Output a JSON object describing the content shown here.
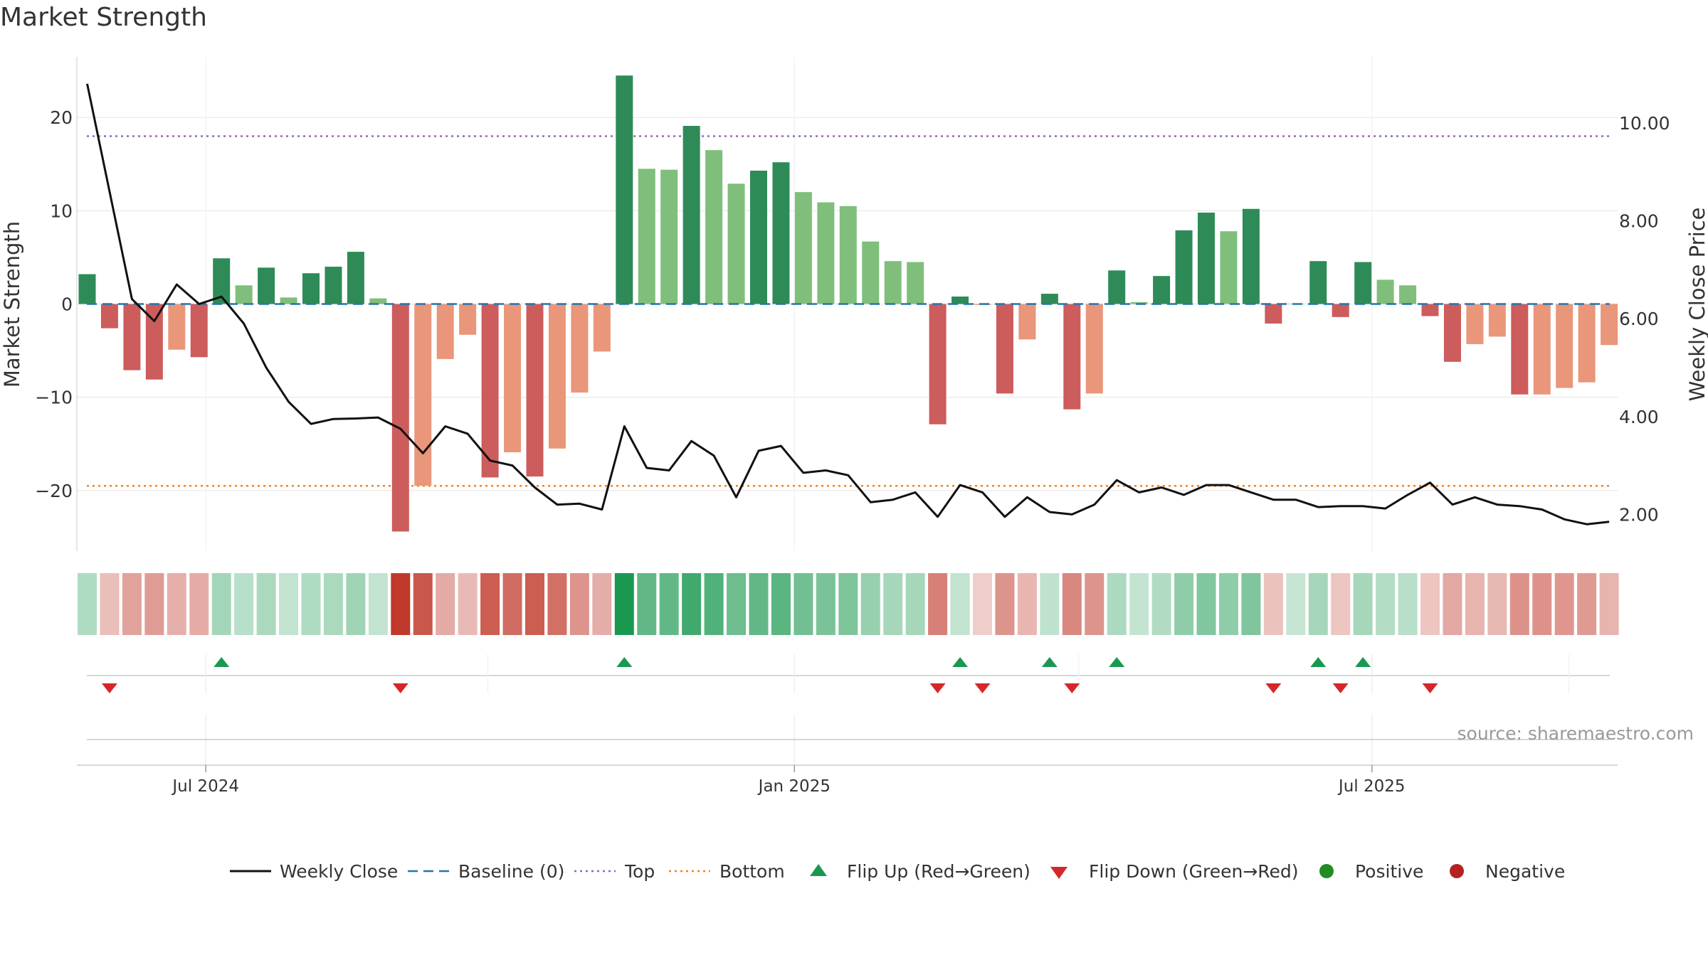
{
  "chart_data": {
    "type": "bar",
    "title": "Market Strength",
    "ylabel_left": "Market Strength",
    "ylabel_right": "Weekly Close Price",
    "source": "source: sharemaestro.com",
    "left_axis": {
      "ticks": [
        20,
        10,
        0,
        -10,
        -20
      ],
      "tick_labels": [
        "20",
        "10",
        "0",
        "−10",
        "−20"
      ],
      "ylim": [
        -26.5,
        26.5
      ]
    },
    "right_axis": {
      "ticks": [
        10,
        8,
        6,
        4,
        2
      ],
      "tick_labels": [
        "10.00",
        "8.00",
        "6.00",
        "4.00",
        "2.00"
      ],
      "ylim": [
        1.25,
        11.35
      ]
    },
    "x_tick_labels": [
      "Jul 2024",
      "Jan 2025",
      "Jul 2025"
    ],
    "x_tick_weeks": [
      5.3,
      31.6,
      57.4
    ],
    "top_level": 18,
    "bottom_level": -19.5,
    "weeks": 69,
    "strength": [
      3.2,
      -2.6,
      -7.1,
      -8.1,
      -4.9,
      -5.7,
      4.9,
      2.0,
      3.9,
      0.7,
      3.3,
      4.0,
      5.6,
      0.6,
      -24.4,
      -19.5,
      -5.9,
      -3.3,
      -18.6,
      -15.9,
      -18.5,
      -15.5,
      -9.5,
      -5.1,
      24.5,
      14.5,
      14.4,
      19.1,
      16.5,
      12.9,
      14.3,
      15.2,
      12.0,
      10.9,
      10.5,
      6.7,
      4.6,
      4.5,
      -12.9,
      0.8,
      -0.1,
      -9.6,
      -3.8,
      1.1,
      -11.3,
      -9.6,
      3.6,
      0.2,
      3.0,
      7.9,
      9.8,
      7.8,
      10.2,
      -2.1,
      0.0,
      4.6,
      -1.4,
      4.5,
      2.6,
      2.0,
      -1.3,
      -6.2,
      -4.3,
      -3.5,
      -9.7,
      -9.7,
      -9.0,
      -8.4,
      -4.4
    ],
    "bar_shade": [
      "dark",
      "dark",
      "dark",
      "dark",
      "light",
      "dark",
      "dark",
      "light",
      "dark",
      "light",
      "dark",
      "dark",
      "dark",
      "light",
      "dark",
      "light",
      "light",
      "light",
      "dark",
      "light",
      "dark",
      "light",
      "light",
      "light",
      "dark",
      "light",
      "light",
      "dark",
      "light",
      "light",
      "dark",
      "dark",
      "light",
      "light",
      "light",
      "light",
      "light",
      "light",
      "dark",
      "dark",
      "light",
      "dark",
      "light",
      "dark",
      "dark",
      "light",
      "dark",
      "light",
      "dark",
      "dark",
      "dark",
      "light",
      "dark",
      "dark",
      "light",
      "dark",
      "dark",
      "dark",
      "light",
      "light",
      "dark",
      "dark",
      "light",
      "light",
      "dark",
      "light",
      "light",
      "light",
      "light"
    ],
    "weekly_close": [
      10.8,
      8.6,
      6.4,
      5.95,
      6.7,
      6.3,
      6.45,
      5.9,
      5.0,
      4.3,
      3.85,
      3.95,
      3.96,
      3.98,
      3.75,
      3.25,
      3.8,
      3.65,
      3.1,
      3.0,
      2.55,
      2.2,
      2.22,
      2.1,
      3.8,
      2.95,
      2.9,
      3.5,
      3.2,
      2.35,
      3.3,
      3.4,
      2.85,
      2.9,
      2.8,
      2.25,
      2.3,
      2.45,
      1.95,
      2.6,
      2.45,
      1.95,
      2.35,
      2.05,
      2.0,
      2.2,
      2.7,
      2.45,
      2.55,
      2.4,
      2.6,
      2.6,
      2.45,
      2.3,
      2.3,
      2.15,
      2.17,
      2.17,
      2.12,
      2.4,
      2.65,
      2.2,
      2.35,
      2.2,
      2.17,
      2.1,
      1.9,
      1.8,
      1.85
    ],
    "flip_up_weeks": [
      6,
      24,
      39,
      43,
      46,
      55,
      57
    ],
    "flip_down_weeks": [
      1,
      14,
      38,
      40,
      44,
      53,
      56,
      60
    ],
    "legend": [
      "Weekly Close",
      "Baseline (0)",
      "Top",
      "Bottom",
      "Flip Up (Red→Green)",
      "Flip Down (Green→Red)",
      "Positive",
      "Negative"
    ],
    "legend_position": "bottom",
    "colors": {
      "pos_dark": "#2e8b57",
      "pos_light": "#7fbf7b",
      "neg_dark": "#cd5c5c",
      "neg_light": "#e9967a",
      "line": "#111111",
      "baseline": "#1f77b4",
      "top": "#9467bd",
      "bottom": "#ff7f0e",
      "flip_up": "#1a9850",
      "flip_down": "#d62728",
      "positive": "#228b22",
      "negative": "#b22222"
    }
  }
}
